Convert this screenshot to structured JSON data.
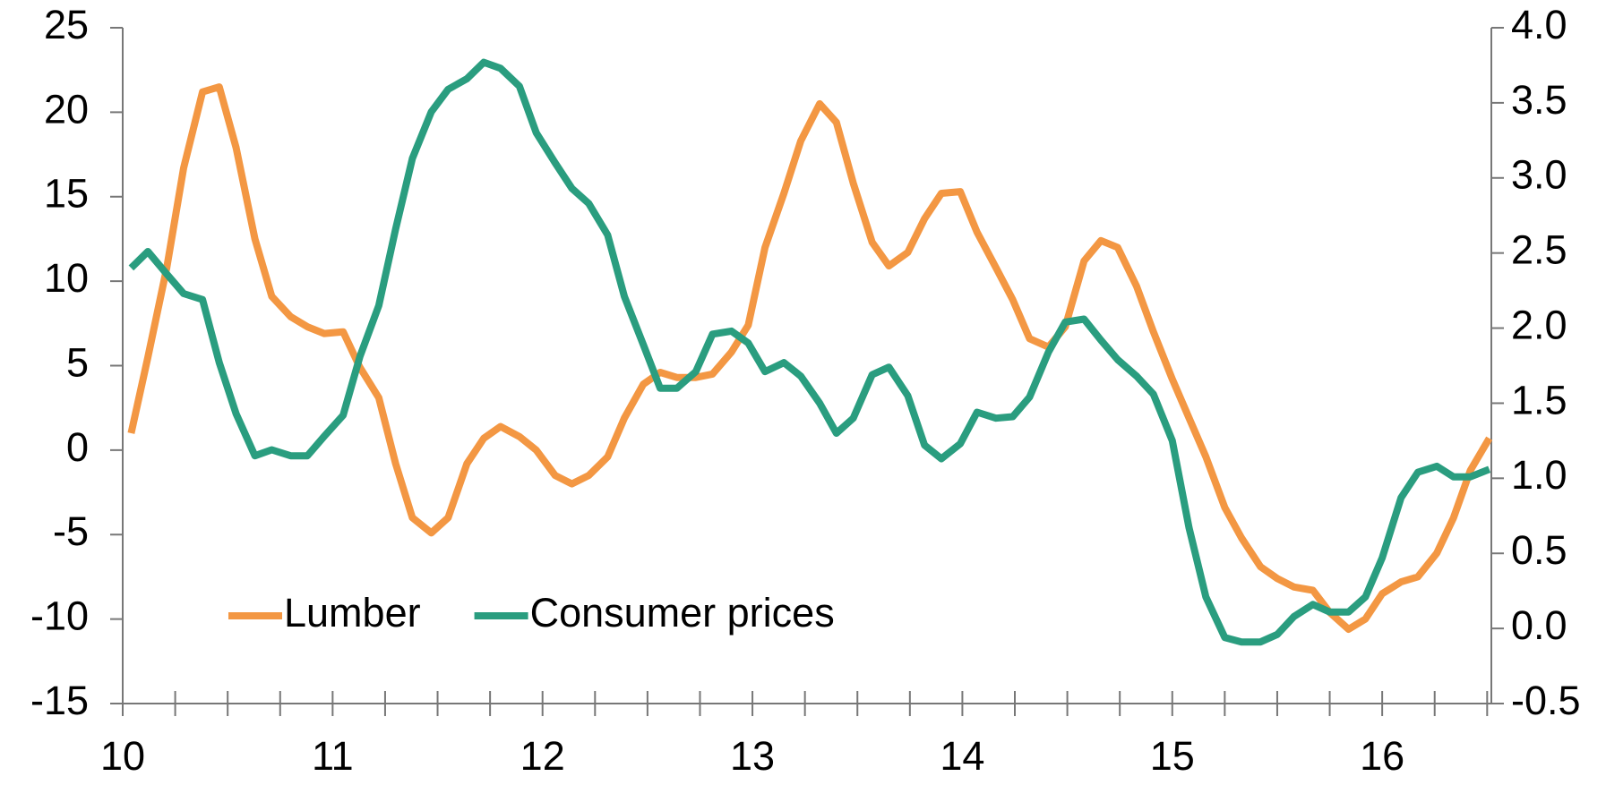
{
  "chart_data": {
    "type": "line",
    "x": [
      10.04,
      10.12,
      10.21,
      10.29,
      10.38,
      10.46,
      10.54,
      10.63,
      10.71,
      10.8,
      10.88,
      10.96,
      11.05,
      11.13,
      11.22,
      11.3,
      11.38,
      11.47,
      11.55,
      11.64,
      11.72,
      11.8,
      11.89,
      11.97,
      12.06,
      12.14,
      12.22,
      12.31,
      12.39,
      12.48,
      12.56,
      12.64,
      12.73,
      12.81,
      12.9,
      12.98,
      13.06,
      13.15,
      13.23,
      13.32,
      13.4,
      13.48,
      13.57,
      13.65,
      13.74,
      13.82,
      13.9,
      13.99,
      14.07,
      14.16,
      14.24,
      14.32,
      14.41,
      14.49,
      14.58,
      14.66,
      14.74,
      14.83,
      14.91,
      15.0,
      15.08,
      15.16,
      15.25,
      15.33,
      15.42,
      15.5,
      15.58,
      15.67,
      15.75,
      15.84,
      15.92,
      16.0,
      16.09,
      16.17,
      16.26,
      16.34,
      16.42,
      16.51
    ],
    "series": [
      {
        "name": "Lumber",
        "color": "#f39743",
        "axis": "y",
        "values": [
          1.0,
          5.5,
          10.8,
          16.7,
          21.2,
          21.5,
          17.9,
          12.5,
          9.1,
          7.9,
          7.3,
          6.9,
          7.0,
          4.9,
          3.1,
          -0.8,
          -4.0,
          -4.9,
          -4.0,
          -0.8,
          0.7,
          1.4,
          0.8,
          0.0,
          -1.5,
          -2.0,
          -1.5,
          -0.4,
          1.9,
          3.9,
          4.6,
          4.3,
          4.3,
          4.5,
          5.8,
          7.4,
          12.0,
          15.2,
          18.3,
          20.5,
          19.4,
          15.8,
          12.3,
          10.9,
          11.7,
          13.7,
          15.2,
          15.3,
          12.9,
          10.8,
          8.9,
          6.6,
          6.1,
          7.3,
          11.2,
          12.4,
          12.0,
          9.7,
          7.0,
          4.2,
          1.9,
          -0.4,
          -3.4,
          -5.2,
          -6.9,
          -7.6,
          -8.1,
          -8.3,
          -9.6,
          -10.6,
          -10.0,
          -8.5,
          -7.8,
          -7.5,
          -6.1,
          -4.0,
          -1.2,
          0.7
        ]
      },
      {
        "name": "Consumer prices",
        "color": "#2a9d7f",
        "axis": "y2",
        "values": [
          2.4,
          2.51,
          2.36,
          2.23,
          2.19,
          1.77,
          1.43,
          1.15,
          1.19,
          1.15,
          1.15,
          1.28,
          1.42,
          1.81,
          2.15,
          2.66,
          3.13,
          3.44,
          3.59,
          3.66,
          3.77,
          3.73,
          3.61,
          3.3,
          3.1,
          2.93,
          2.83,
          2.62,
          2.21,
          1.89,
          1.6,
          1.6,
          1.71,
          1.96,
          1.98,
          1.9,
          1.71,
          1.77,
          1.68,
          1.5,
          1.3,
          1.4,
          1.69,
          1.74,
          1.55,
          1.22,
          1.13,
          1.23,
          1.44,
          1.4,
          1.41,
          1.54,
          1.84,
          2.04,
          2.06,
          1.92,
          1.79,
          1.68,
          1.56,
          1.25,
          0.67,
          0.21,
          -0.06,
          -0.09,
          -0.09,
          -0.04,
          0.08,
          0.16,
          0.11,
          0.11,
          0.21,
          0.47,
          0.87,
          1.04,
          1.08,
          1.01,
          1.01,
          1.06
        ]
      }
    ],
    "xlim": [
      10,
      16.52
    ],
    "xticks": [
      10,
      11,
      12,
      13,
      14,
      15,
      16
    ],
    "ylim": [
      -15,
      25
    ],
    "yticks": [
      -15,
      -10,
      -5,
      0,
      5,
      10,
      15,
      20,
      25
    ],
    "y2lim": [
      -0.5,
      4
    ],
    "y2ticks": [
      -0.5,
      {
        "value": 0,
        "label": "0.0"
      },
      0.5,
      {
        "value": 1,
        "label": "1.0"
      },
      1.5,
      {
        "value": 2,
        "label": "2.0"
      },
      2.5,
      {
        "value": 3,
        "label": "3.0"
      },
      3.5,
      {
        "value": 4,
        "label": "4.0"
      }
    ],
    "legend": "lower-left",
    "grid": false
  }
}
